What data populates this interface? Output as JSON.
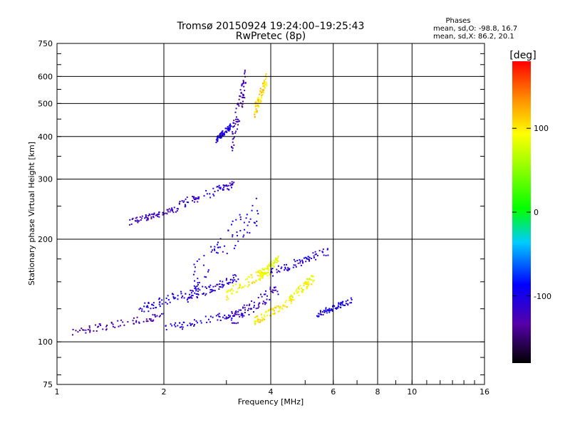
{
  "chart_data": {
    "type": "scatter",
    "title": "Tromsø 20150924 19:24:00–19:25:43",
    "subtitle": "RwPretec (8p)",
    "xlabel": "Frequency [MHz]",
    "ylabel": "Stationary phase Virtual Height [km]",
    "x_scale": "log",
    "y_scale": "log",
    "xlim": [
      1,
      16
    ],
    "ylim": [
      75,
      750
    ],
    "x_ticks": [
      "1",
      "2",
      "4",
      "6",
      "8",
      "10",
      "16"
    ],
    "y_ticks": [
      "75",
      "100",
      "200",
      "300",
      "400",
      "500",
      "600",
      "750"
    ],
    "x_grid_values": [
      2,
      4,
      6,
      8,
      10
    ],
    "y_grid_values": [
      100,
      200,
      300,
      400,
      500,
      600
    ],
    "grid": true,
    "stats_title": "Phases",
    "stats_lines": [
      "mean, sd,O: -98.8, 16.7",
      "mean, sd,X:  86.2, 20.1"
    ],
    "colorbar": {
      "label": "[deg]",
      "range": [
        -180,
        180
      ],
      "ticks": [
        "100",
        "0",
        "-100"
      ],
      "tick_values": [
        100,
        0,
        -100
      ]
    },
    "traces": [
      {
        "phase": -130,
        "x_range": [
          1.1,
          2.0
        ],
        "h_range": [
          104,
          122
        ]
      },
      {
        "phase": -105,
        "x_range": [
          2.0,
          3.4
        ],
        "h_range": [
          106,
          126
        ]
      },
      {
        "phase": -100,
        "x_range": [
          1.7,
          2.6
        ],
        "h_range": [
          120,
          150
        ]
      },
      {
        "phase": -110,
        "x_range": [
          2.3,
          3.3
        ],
        "h_range": [
          130,
          160
        ]
      },
      {
        "phase": -120,
        "x_range": [
          1.6,
          2.2
        ],
        "h_range": [
          220,
          250
        ]
      },
      {
        "phase": -110,
        "x_range": [
          2.2,
          3.2
        ],
        "h_range": [
          245,
          300
        ]
      },
      {
        "phase": -125,
        "x_range": [
          3.1,
          3.4
        ],
        "h_range": [
          350,
          640
        ]
      },
      {
        "phase": -100,
        "x_range": [
          2.8,
          3.1
        ],
        "h_range": [
          380,
          440
        ]
      },
      {
        "phase": -105,
        "x_range": [
          2.4,
          3.7
        ],
        "h_range": [
          140,
          270
        ]
      },
      {
        "phase": -115,
        "x_range": [
          3.1,
          4.2
        ],
        "h_range": [
          110,
          150
        ]
      },
      {
        "phase": 95,
        "x_range": [
          3.0,
          4.0
        ],
        "h_range": [
          132,
          170
        ]
      },
      {
        "phase": 100,
        "x_range": [
          3.6,
          4.6
        ],
        "h_range": [
          112,
          135
        ]
      },
      {
        "phase": 85,
        "x_range": [
          3.7,
          4.2
        ],
        "h_range": [
          150,
          180
        ]
      },
      {
        "phase": 90,
        "x_range": [
          4.5,
          5.3
        ],
        "h_range": [
          128,
          160
        ]
      },
      {
        "phase": -110,
        "x_range": [
          4.0,
          5.8
        ],
        "h_range": [
          155,
          190
        ]
      },
      {
        "phase": -100,
        "x_range": [
          5.4,
          6.8
        ],
        "h_range": [
          118,
          135
        ]
      },
      {
        "phase": 110,
        "x_range": [
          3.6,
          3.9
        ],
        "h_range": [
          450,
          620
        ]
      }
    ]
  }
}
